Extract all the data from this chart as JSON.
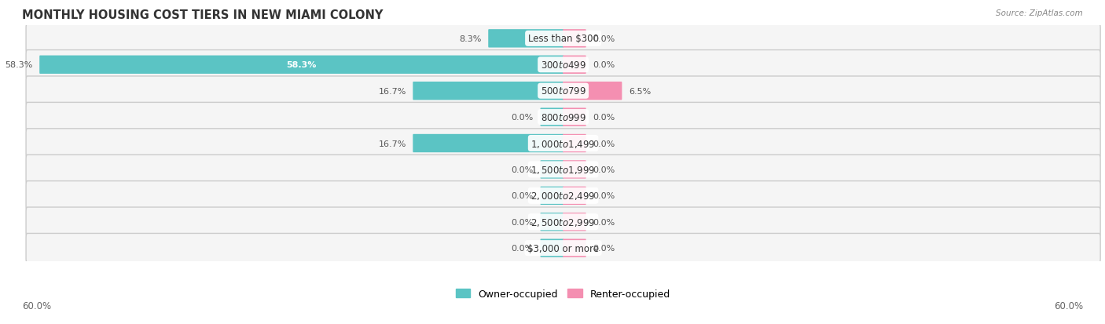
{
  "title": "MONTHLY HOUSING COST TIERS IN NEW MIAMI COLONY",
  "source": "Source: ZipAtlas.com",
  "categories": [
    "Less than $300",
    "$300 to $499",
    "$500 to $799",
    "$800 to $999",
    "$1,000 to $1,499",
    "$1,500 to $1,999",
    "$2,000 to $2,499",
    "$2,500 to $2,999",
    "$3,000 or more"
  ],
  "owner_values": [
    8.3,
    58.3,
    16.7,
    0.0,
    16.7,
    0.0,
    0.0,
    0.0,
    0.0
  ],
  "renter_values": [
    0.0,
    0.0,
    6.5,
    0.0,
    0.0,
    0.0,
    0.0,
    0.0,
    0.0
  ],
  "owner_color": "#5bc4c4",
  "renter_color": "#f48fb1",
  "row_bg_color": "#e8e8e8",
  "row_inner_color": "#f5f5f5",
  "axis_limit": 60.0,
  "min_bar_stub": 2.5,
  "label_fontsize": 8.0,
  "title_fontsize": 10.5,
  "source_fontsize": 7.5,
  "legend_fontsize": 9,
  "footer_fontsize": 8.5,
  "category_fontsize": 8.5,
  "white_label_threshold": 5.0
}
